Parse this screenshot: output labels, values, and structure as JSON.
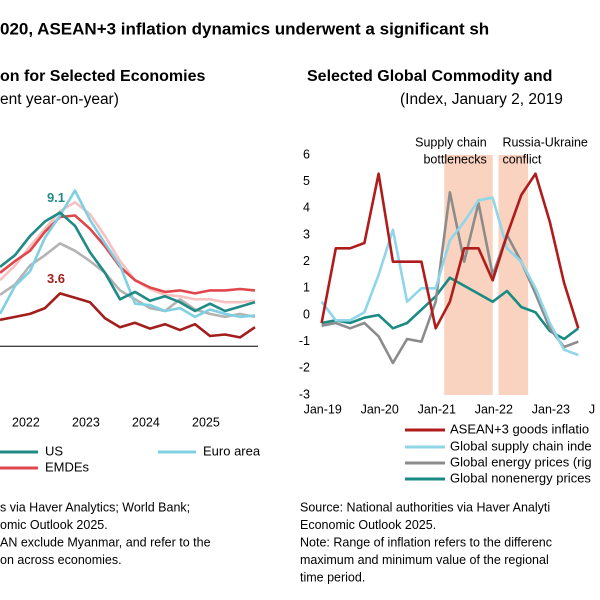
{
  "page_title": "020, ASEAN+3 inflation dynamics underwent a significant sh",
  "chart_data": [
    {
      "type": "line",
      "title": "on for Selected Economies",
      "subtitle": "ent year-on-year)",
      "x": [
        2021.5,
        2021.75,
        2022,
        2022.25,
        2022.5,
        2022.75,
        2023,
        2023.25,
        2023.5,
        2023.75,
        2024,
        2024.25,
        2024.5,
        2024.75,
        2025,
        2025.25,
        2025.5,
        2025.75
      ],
      "xlim": [
        2021.5,
        2025.8
      ],
      "xticks": [
        2022,
        2023,
        2024,
        2025
      ],
      "ylim": [
        -4,
        12
      ],
      "zero_line": true,
      "series": [
        {
          "name": "US",
          "color": "#1f8a86",
          "values": [
            5.4,
            6.2,
            7.5,
            8.5,
            9.1,
            8.2,
            6.4,
            5.0,
            3.2,
            3.7,
            3.1,
            3.4,
            3.0,
            2.4,
            2.9,
            2.4,
            2.7,
            3.0
          ],
          "value_labels": [
            null,
            null,
            null,
            null,
            "9.1",
            null,
            null,
            null,
            null,
            null,
            null,
            null,
            null,
            null,
            null,
            null,
            null,
            null
          ]
        },
        {
          "name": "Euro area",
          "color": "#7fd0e3",
          "values": [
            2.2,
            4.1,
            5.1,
            7.4,
            8.9,
            10.6,
            8.6,
            7.0,
            5.5,
            2.9,
            2.8,
            2.4,
            2.6,
            2.0,
            2.5,
            2.2,
            2.0,
            2.1
          ]
        },
        {
          "name": "EMDEs",
          "color": "#e0474c",
          "values": [
            5.0,
            5.8,
            6.5,
            7.8,
            8.8,
            8.9,
            8.0,
            6.8,
            5.4,
            4.5,
            4.0,
            3.7,
            3.8,
            3.6,
            3.8,
            3.8,
            3.9,
            3.8
          ]
        },
        {
          "color": "#a31d1d",
          "values": [
            1.8,
            2.0,
            2.2,
            2.6,
            3.6,
            3.3,
            3.0,
            1.9,
            1.3,
            1.6,
            1.2,
            1.5,
            1.1,
            1.5,
            0.7,
            0.8,
            0.6,
            1.3
          ],
          "value_labels": [
            null,
            null,
            null,
            null,
            "3.6",
            null,
            null,
            null,
            null,
            null,
            null,
            null,
            null,
            null,
            null,
            null,
            null,
            null
          ]
        },
        {
          "color": "#b3b3b3",
          "values": [
            3.5,
            4.2,
            5.5,
            6.2,
            7.0,
            6.5,
            5.8,
            5.0,
            3.8,
            3.2,
            2.6,
            2.4,
            3.2,
            2.5,
            2.2,
            2.0,
            2.2,
            2.0
          ]
        },
        {
          "color": "#f6c1c1",
          "values": [
            4.5,
            5.5,
            6.8,
            8.0,
            9.2,
            9.8,
            9.0,
            7.5,
            5.8,
            4.5,
            3.9,
            3.5,
            3.4,
            3.2,
            3.2,
            3.0,
            3.0,
            3.1
          ]
        }
      ]
    },
    {
      "type": "line",
      "title": "Selected Global Commodity and",
      "subtitle": "(Index, January 2, 2019",
      "x": [
        2019,
        2019.25,
        2019.5,
        2019.75,
        2020,
        2020.25,
        2020.5,
        2020.75,
        2021,
        2021.25,
        2021.5,
        2021.75,
        2022,
        2022.25,
        2022.5,
        2022.75,
        2023,
        2023.25,
        2023.5
      ],
      "xlim": [
        2018.92,
        2023.88
      ],
      "xticks": [
        {
          "value": 2019,
          "label": "Jan-19"
        },
        {
          "value": 2020,
          "label": "Jan-20"
        },
        {
          "value": 2021,
          "label": "Jan-21"
        },
        {
          "value": 2022,
          "label": "Jan-22"
        },
        {
          "value": 2023,
          "label": "Jan-23"
        },
        {
          "value": 2024,
          "label": "J"
        }
      ],
      "ylim": [
        -3,
        6
      ],
      "yticks": [
        -3,
        -2,
        -1,
        0,
        1,
        2,
        3,
        4,
        5,
        6
      ],
      "shaded": [
        {
          "label_lines": [
            "Supply chain",
            "bottlenecks"
          ],
          "xrange": [
            2021.15,
            2022.0
          ],
          "color": "#f9d3bf"
        },
        {
          "label_lines": [
            "Russia-Ukraine",
            "conflict"
          ],
          "xrange": [
            2022.1,
            2022.62
          ],
          "color": "#f9d3bf"
        }
      ],
      "series": [
        {
          "name": "ASEAN+3 goods inflatio",
          "color": "#b01c1c",
          "values": [
            -0.3,
            2.5,
            2.5,
            2.7,
            5.3,
            2.0,
            2.0,
            2.0,
            -0.5,
            0.5,
            2.5,
            2.5,
            1.3,
            3.0,
            4.5,
            5.3,
            3.5,
            1.2,
            -0.5
          ]
        },
        {
          "name": "Global supply chain inde",
          "color": "#8fd6e8",
          "values": [
            0.5,
            -0.2,
            -0.2,
            0.1,
            1.5,
            3.2,
            0.5,
            1.0,
            1.0,
            2.8,
            3.5,
            4.3,
            4.4,
            2.5,
            2.0,
            1.0,
            -0.3,
            -1.3,
            -1.5
          ]
        },
        {
          "name": "Global energy prices (rig",
          "color": "#8c8c8c",
          "values": [
            -0.4,
            -0.3,
            -0.5,
            -0.3,
            -0.8,
            -1.8,
            -0.9,
            -1.0,
            0.5,
            4.6,
            2.0,
            4.2,
            1.5,
            3.0,
            2.0,
            0.8,
            -0.5,
            -1.2,
            -1.0
          ]
        },
        {
          "name": "Global nonenergy prices",
          "color": "#1a8a84",
          "values": [
            -0.3,
            -0.2,
            -0.3,
            -0.1,
            0.0,
            -0.5,
            -0.3,
            0.2,
            0.7,
            1.4,
            1.1,
            0.8,
            0.5,
            0.9,
            0.3,
            0.1,
            -0.6,
            -0.9,
            -0.5
          ]
        }
      ]
    }
  ],
  "notes": {
    "left": [
      "s via Haver Analytics; World Bank;",
      "omic Outlook 2025.",
      "AN exclude Myanmar, and refer to the",
      "on across economies."
    ],
    "right": [
      "Source: National authorities via Haver Analyti",
      "Economic Outlook 2025.",
      "Note: Range of inflation refers to the differenc",
      "maximum and minimum value of the regional",
      "time period."
    ]
  }
}
